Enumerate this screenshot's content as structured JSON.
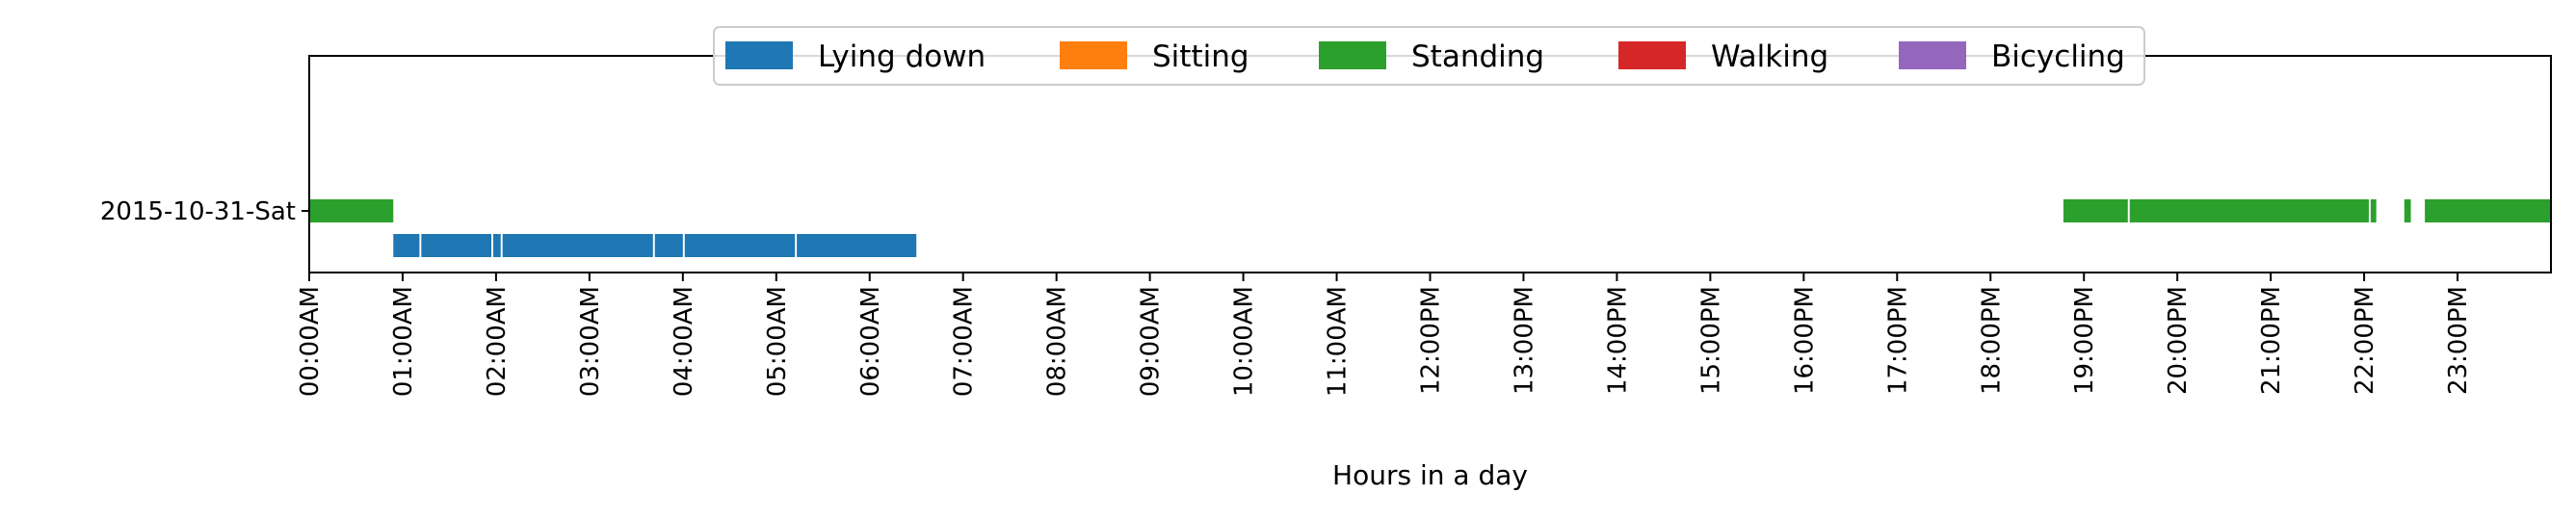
{
  "chart_data": {
    "type": "bar",
    "orientation": "horizontal-timeline",
    "title": "",
    "xlabel": "Hours in a day",
    "ylabel": "",
    "xlim": [
      0,
      24
    ],
    "grid": false,
    "legend_placement": "top-center",
    "y_categories": [
      "2015-10-31-Sat"
    ],
    "x_tick_labels": [
      "00:00AM",
      "01:00AM",
      "02:00AM",
      "03:00AM",
      "04:00AM",
      "05:00AM",
      "06:00AM",
      "07:00AM",
      "08:00AM",
      "09:00AM",
      "10:00AM",
      "11:00AM",
      "12:00PM",
      "13:00PM",
      "14:00PM",
      "15:00PM",
      "16:00PM",
      "17:00PM",
      "18:00PM",
      "19:00PM",
      "20:00PM",
      "21:00PM",
      "22:00PM",
      "23:00PM"
    ],
    "series": [
      {
        "name": "Lying down",
        "color": "#1f77b4",
        "lane": "lower",
        "segments": [
          [
            0.9,
            1.18
          ],
          [
            1.2,
            1.95
          ],
          [
            1.97,
            2.05
          ],
          [
            2.07,
            3.68
          ],
          [
            3.7,
            4.0
          ],
          [
            4.02,
            5.2
          ],
          [
            5.22,
            6.5
          ]
        ]
      },
      {
        "name": "Sitting",
        "color": "#ff7f0e",
        "lane": "upper",
        "segments": []
      },
      {
        "name": "Standing",
        "color": "#2ca02c",
        "lane": "upper",
        "segments": [
          [
            0.0,
            0.9
          ],
          [
            18.78,
            19.47
          ],
          [
            19.49,
            22.05
          ],
          [
            22.07,
            22.13
          ],
          [
            22.43,
            22.5
          ],
          [
            22.65,
            24.0
          ]
        ]
      },
      {
        "name": "Walking",
        "color": "#d62728",
        "lane": "upper",
        "segments": []
      },
      {
        "name": "Bicycling",
        "color": "#9467bd",
        "lane": "upper",
        "segments": []
      }
    ]
  }
}
